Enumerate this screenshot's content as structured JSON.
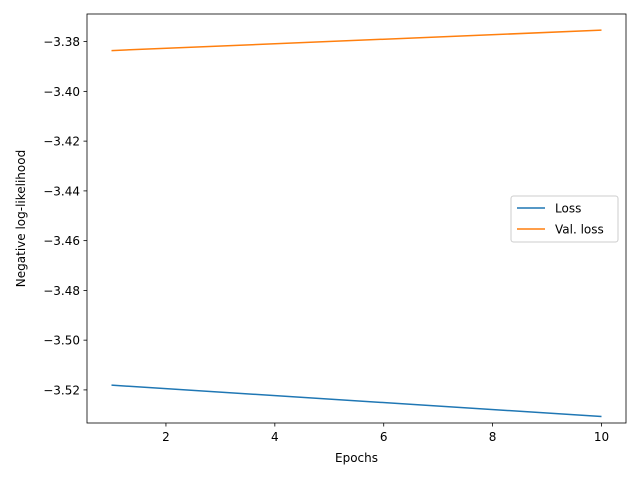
{
  "chart_data": {
    "type": "line",
    "title": "",
    "xlabel": "Epochs",
    "ylabel": "Negative log-likelihood",
    "xlim": [
      0.55,
      10.45
    ],
    "ylim": [
      -3.5333,
      -3.3689
    ],
    "xticks": [
      2,
      4,
      6,
      8,
      10
    ],
    "xtick_labels": [
      "2",
      "4",
      "6",
      "8",
      "10"
    ],
    "yticks": [
      -3.52,
      -3.5,
      -3.48,
      -3.46,
      -3.44,
      -3.42,
      -3.4,
      -3.38
    ],
    "ytick_labels": [
      "−3.52",
      "−3.50",
      "−3.48",
      "−3.46",
      "−3.44",
      "−3.42",
      "−3.40",
      "−3.38"
    ],
    "grid": false,
    "legend_position": "center-right",
    "series": [
      {
        "name": "Loss",
        "color": "#1f77b4",
        "x": [
          1,
          10
        ],
        "values": [
          -3.5181,
          -3.5307
        ]
      },
      {
        "name": "Val. loss",
        "color": "#ff7f0e",
        "x": [
          1,
          10
        ],
        "values": [
          -3.3836,
          -3.3754
        ]
      }
    ]
  }
}
